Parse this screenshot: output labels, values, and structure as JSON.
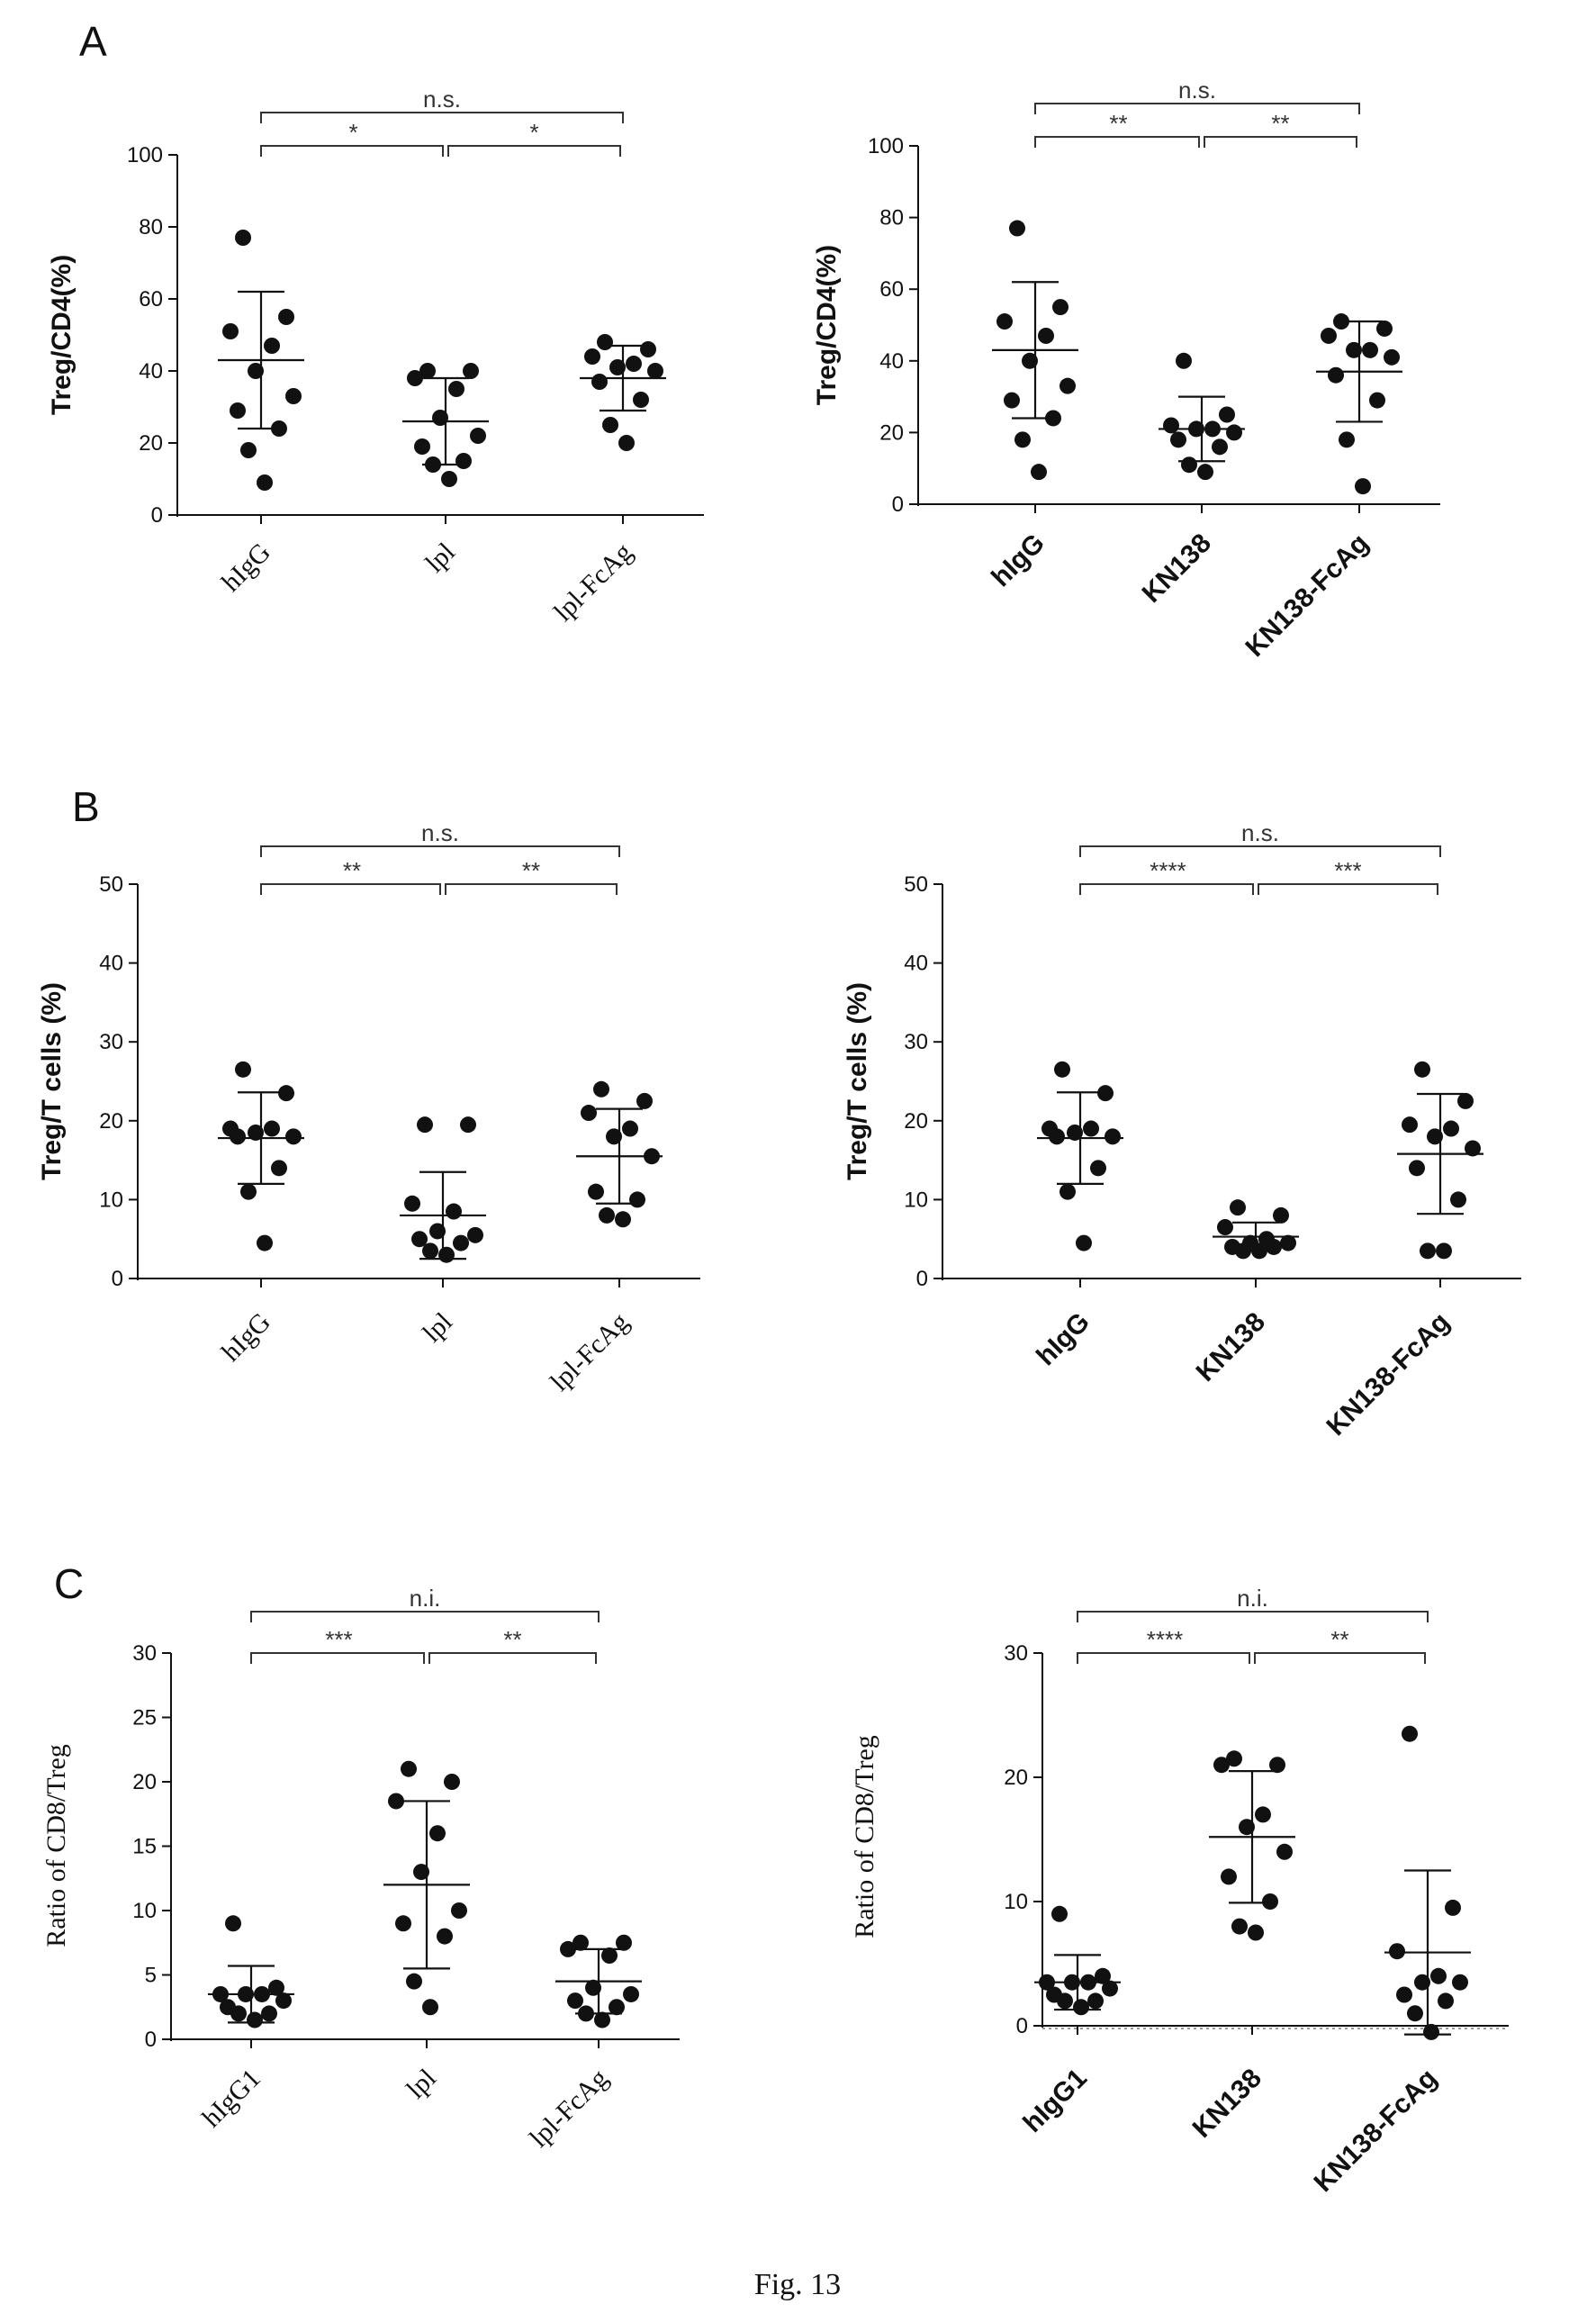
{
  "caption": "Fig. 13",
  "panels": [
    {
      "letter": "A"
    },
    {
      "letter": "B"
    },
    {
      "letter": "C"
    }
  ],
  "chart_data": [
    {
      "type": "scatter",
      "panel": "A",
      "ylabel": "Treg/CD4(%)",
      "ylim": [
        0,
        100
      ],
      "yticks": [
        0,
        20,
        40,
        60,
        80,
        100
      ],
      "categories": [
        "hIgG",
        "lpl",
        "lpl-FcAg"
      ],
      "points": [
        [
          77,
          55,
          51,
          47,
          40,
          33,
          29,
          24,
          18,
          9
        ],
        [
          40,
          40,
          38,
          35,
          27,
          22,
          19,
          15,
          14,
          10
        ],
        [
          48,
          46,
          44,
          42,
          41,
          40,
          37,
          32,
          25,
          20
        ]
      ],
      "mean": [
        43,
        26,
        38
      ],
      "sd": [
        19,
        12,
        9
      ],
      "sig": [
        {
          "from": 0,
          "to": 1,
          "label": "*"
        },
        {
          "from": 1,
          "to": 2,
          "label": "*"
        },
        {
          "from": 0,
          "to": 2,
          "label": "n.s."
        }
      ]
    },
    {
      "type": "scatter",
      "panel": "A",
      "ylabel": "Treg/CD4(%)",
      "ylim": [
        0,
        100
      ],
      "yticks": [
        0,
        20,
        40,
        60,
        80,
        100
      ],
      "categories": [
        "hIgG",
        "KN138",
        "KN138-FcAg"
      ],
      "points": [
        [
          77,
          55,
          51,
          47,
          40,
          33,
          29,
          24,
          18,
          9
        ],
        [
          40,
          25,
          22,
          21,
          21,
          20,
          18,
          16,
          11,
          9
        ],
        [
          51,
          49,
          47,
          43,
          43,
          41,
          36,
          29,
          18,
          5
        ]
      ],
      "mean": [
        43,
        21,
        37
      ],
      "sd": [
        19,
        9,
        14
      ],
      "sig": [
        {
          "from": 0,
          "to": 1,
          "label": "**"
        },
        {
          "from": 1,
          "to": 2,
          "label": "**"
        },
        {
          "from": 0,
          "to": 2,
          "label": "n.s."
        }
      ]
    },
    {
      "type": "scatter",
      "panel": "B",
      "ylabel": "Treg/T cells (%)",
      "ylim": [
        0,
        50
      ],
      "yticks": [
        0,
        10,
        20,
        30,
        40,
        50
      ],
      "categories": [
        "hIgG",
        "lpl",
        "lpl-FcAg"
      ],
      "points": [
        [
          26.5,
          23.5,
          19,
          19,
          18.5,
          18,
          18,
          14,
          11,
          4.5
        ],
        [
          19.5,
          19.5,
          9.5,
          8.5,
          6,
          5.5,
          5,
          4.5,
          3.5,
          3
        ],
        [
          24,
          22.5,
          21,
          19,
          18,
          15.5,
          11,
          10,
          8,
          7.5
        ]
      ],
      "mean": [
        17.8,
        8,
        15.5
      ],
      "sd": [
        5.8,
        5.5,
        6
      ],
      "sig": [
        {
          "from": 0,
          "to": 1,
          "label": "**"
        },
        {
          "from": 1,
          "to": 2,
          "label": "**"
        },
        {
          "from": 0,
          "to": 2,
          "label": "n.s."
        }
      ]
    },
    {
      "type": "scatter",
      "panel": "B",
      "ylabel": "Treg/T cells (%)",
      "ylim": [
        0,
        50
      ],
      "yticks": [
        0,
        10,
        20,
        30,
        40,
        50
      ],
      "categories": [
        "hIgG",
        "KN138",
        "KN138-FcAg"
      ],
      "points": [
        [
          26.5,
          23.5,
          19,
          19,
          18.5,
          18,
          18,
          14,
          11,
          4.5
        ],
        [
          9,
          8,
          6.5,
          5,
          4.5,
          4.5,
          4,
          4,
          3.5,
          3.5
        ],
        [
          26.5,
          22.5,
          19.5,
          19,
          18,
          16.5,
          14,
          10,
          3.5,
          3.5
        ]
      ],
      "mean": [
        17.8,
        5.3,
        15.8
      ],
      "sd": [
        5.8,
        1.8,
        7.6
      ],
      "sig": [
        {
          "from": 0,
          "to": 1,
          "label": "****"
        },
        {
          "from": 1,
          "to": 2,
          "label": "***"
        },
        {
          "from": 0,
          "to": 2,
          "label": "n.s."
        }
      ]
    },
    {
      "type": "scatter",
      "panel": "C",
      "ylabel": "Ratio of CD8/Treg",
      "ylim": [
        0,
        30
      ],
      "yticks": [
        0,
        5,
        10,
        15,
        20,
        25,
        30
      ],
      "categories": [
        "hIgG1",
        "lpl",
        "lpl-FcAg"
      ],
      "points": [
        [
          9,
          4,
          3.5,
          3.5,
          3.5,
          3,
          2.5,
          2,
          2,
          1.5
        ],
        [
          21,
          20,
          18.5,
          16,
          13,
          10,
          9,
          8,
          4.5,
          2.5
        ],
        [
          7.5,
          7.5,
          7,
          6.5,
          4,
          3.5,
          3,
          2.5,
          2,
          1.5
        ]
      ],
      "mean": [
        3.5,
        12,
        4.5
      ],
      "sd": [
        2.2,
        6.5,
        2.5
      ],
      "sig": [
        {
          "from": 0,
          "to": 1,
          "label": "***"
        },
        {
          "from": 1,
          "to": 2,
          "label": "**"
        },
        {
          "from": 0,
          "to": 2,
          "label": "n.i."
        }
      ]
    },
    {
      "type": "scatter",
      "panel": "C",
      "ylabel": "Ratio of CD8/Treg",
      "ylim": [
        0,
        30
      ],
      "yticks": [
        0,
        10,
        20,
        30
      ],
      "categories": [
        "hIgG1",
        "KN138",
        "KN138-FcAg"
      ],
      "points": [
        [
          9,
          4,
          3.5,
          3.5,
          3.5,
          3,
          2.5,
          2,
          2,
          1.5
        ],
        [
          21.5,
          21,
          21,
          17,
          16,
          14,
          12,
          10,
          8,
          7.5
        ],
        [
          23.5,
          9.5,
          6,
          4,
          3.5,
          3.5,
          2.5,
          2,
          1,
          -0.5
        ]
      ],
      "mean": [
        3.5,
        15.2,
        5.9
      ],
      "sd": [
        2.2,
        5.3,
        6.6
      ],
      "zero_line": true,
      "sig": [
        {
          "from": 0,
          "to": 1,
          "label": "****"
        },
        {
          "from": 1,
          "to": 2,
          "label": "**"
        },
        {
          "from": 0,
          "to": 2,
          "label": "n.i."
        }
      ]
    }
  ]
}
